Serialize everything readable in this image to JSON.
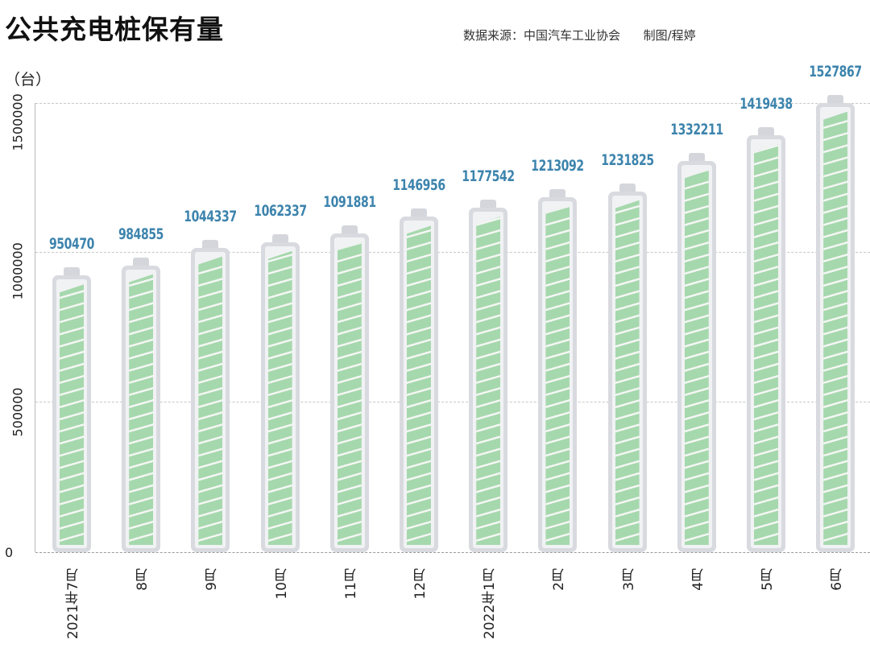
{
  "header": {
    "title": "公共充电桩保有量",
    "source": "数据来源：中国汽车工业协会      制图/程婷"
  },
  "axis": {
    "unit_label": "（台）",
    "y_ticks": [
      "0",
      "500000",
      "1000000",
      "1500000"
    ]
  },
  "colors": {
    "value_label": "#3d84ad",
    "fill": "#a6d8ad",
    "battery_shell": "#d8dae0"
  },
  "bars": [
    {
      "label": "2021年7月",
      "value": "950470"
    },
    {
      "label": "8月",
      "value": "984855"
    },
    {
      "label": "9月",
      "value": "1044337"
    },
    {
      "label": "10月",
      "value": "1062337"
    },
    {
      "label": "11月",
      "value": "1091881"
    },
    {
      "label": "12月",
      "value": "1146956"
    },
    {
      "label": "2022年1月",
      "value": "1177542"
    },
    {
      "label": "2月",
      "value": "1213092"
    },
    {
      "label": "3月",
      "value": "1231825"
    },
    {
      "label": "4月",
      "value": "1332211"
    },
    {
      "label": "5月",
      "value": "1419438"
    },
    {
      "label": "6月",
      "value": "1527867"
    }
  ],
  "chart_data": {
    "type": "bar",
    "title": "公共充电桩保有量",
    "subtitle": "数据来源：中国汽车工业协会  制图/程婷",
    "xlabel": "",
    "ylabel": "（台）",
    "categories": [
      "2021年7月",
      "8月",
      "9月",
      "10月",
      "11月",
      "12月",
      "2022年1月",
      "2月",
      "3月",
      "4月",
      "5月",
      "6月"
    ],
    "values": [
      950470,
      984855,
      1044337,
      1062337,
      1091881,
      1146956,
      1177542,
      1213092,
      1231825,
      1332211,
      1419438,
      1527867
    ],
    "ylim": [
      0,
      1500000
    ],
    "y_ticks": [
      0,
      500000,
      1000000,
      1500000
    ],
    "grid": true,
    "legend": "none",
    "style": "battery-shaped bars with data labels above"
  }
}
